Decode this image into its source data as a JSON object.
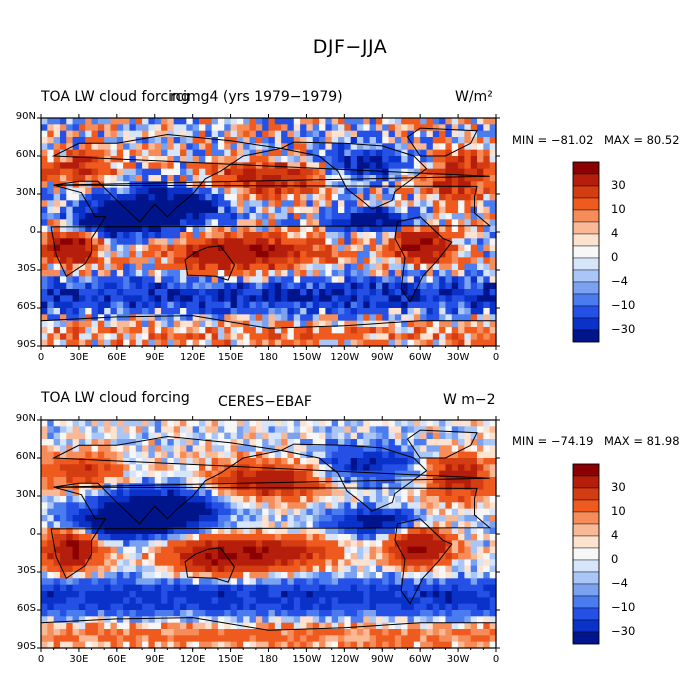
{
  "figure": {
    "title": "DJF−JJA"
  },
  "colorbar_levels": [
    "30",
    "10",
    "4",
    "0",
    "−4",
    "−10",
    "−30"
  ],
  "colors": {
    "scale": [
      "#8b0000",
      "#b41e0a",
      "#d43c12",
      "#ef5a1e",
      "#f58c5a",
      "#fab996",
      "#fde2d0",
      "#f7f7f7",
      "#d6e5fa",
      "#a9c6f7",
      "#7aa2f0",
      "#4a7bef",
      "#2450e6",
      "#0a32c8",
      "#00148c"
    ],
    "land": "#000000",
    "frame": "#000000"
  },
  "chart_data": [
    {
      "type": "heatmap",
      "left_title": "TOA LW cloud forcing",
      "center_title": "rcimg4 (yrs 1979−1979)",
      "units": "W/m²",
      "min_label": "MIN = −81.02",
      "max_label": "MAX =  80.52",
      "xlabels": [
        "0",
        "30E",
        "60E",
        "90E",
        "120E",
        "150E",
        "180",
        "150W",
        "120W",
        "90W",
        "60W",
        "30W",
        "0"
      ],
      "ylabels": [
        "90N",
        "60N",
        "30N",
        "0",
        "30S",
        "60S",
        "90S"
      ],
      "colorbar_ticks": [
        "30",
        "10",
        "4",
        "0",
        "−4",
        "−10",
        "−30"
      ],
      "xlim": [
        0,
        360
      ],
      "ylim": [
        -90,
        90
      ]
    },
    {
      "type": "heatmap",
      "left_title": "TOA LW cloud forcing",
      "center_title": "CERES−EBAF",
      "units": "W m−2",
      "min_label": "MIN = −74.19",
      "max_label": "MAX =  81.98",
      "xlabels": [
        "0",
        "30E",
        "60E",
        "90E",
        "120E",
        "150E",
        "180",
        "150W",
        "120W",
        "90W",
        "60W",
        "30W",
        "0"
      ],
      "ylabels": [
        "90N",
        "60N",
        "30N",
        "0",
        "30S",
        "60S",
        "90S"
      ],
      "colorbar_ticks": [
        "30",
        "10",
        "4",
        "0",
        "−4",
        "−10",
        "−30"
      ],
      "xlim": [
        0,
        360
      ],
      "ylim": [
        -90,
        90
      ]
    }
  ]
}
